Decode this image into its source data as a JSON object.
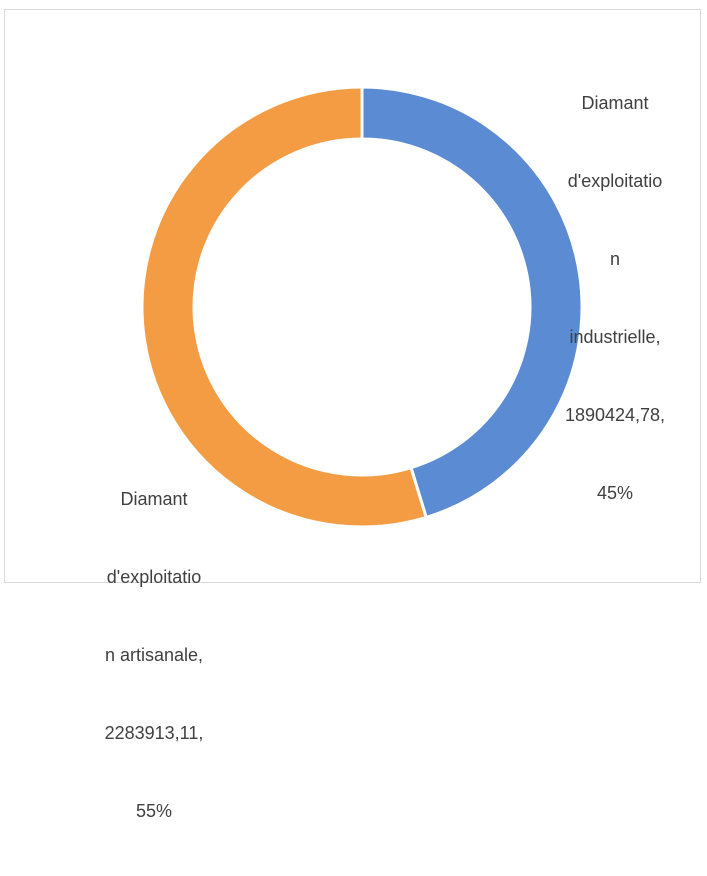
{
  "chart_data": {
    "type": "pie",
    "donut": true,
    "title": "",
    "slices": [
      {
        "name": "Diamant d'exploitation industrielle",
        "value": 1890424.78,
        "value_label": "1890424,78",
        "percent_label": "45%",
        "color": "#5B8BD3"
      },
      {
        "name": "Diamant d'exploitation artisanale",
        "value": 2283913.11,
        "value_label": "2283913,11",
        "percent_label": "55%",
        "color": "#F39C43"
      }
    ],
    "data_labels": [
      {
        "lines": [
          "Diamant",
          "d'exploitatio",
          "n",
          "industrielle,",
          "1890424,78,",
          "45%"
        ]
      },
      {
        "lines": [
          "Diamant",
          "d'exploitatio",
          "n artisanale,",
          "2283913,11,",
          "55%"
        ]
      }
    ],
    "legend": "none"
  }
}
